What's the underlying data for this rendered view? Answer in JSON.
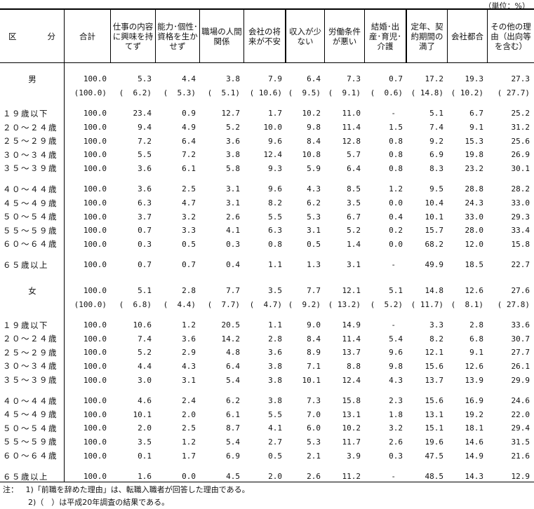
{
  "unit": "（単位：%）",
  "header": {
    "kubun_a": "区",
    "kubun_b": "分",
    "columns": [
      "合計",
      "仕事の内容に興味を持てず",
      "能力･個性･資格を生かせず",
      "職場の人間関係",
      "会社の将来が不安",
      "収入が少ない",
      "労働条件が悪い",
      "結婚･出産･育児･介護",
      "定年、契約期間の満了",
      "会社都合",
      "その他の理由（出向等を含む）"
    ]
  },
  "groups": [
    {
      "label": "男",
      "values": [
        "100.0",
        "5.3",
        "4.4",
        "3.8",
        "7.9",
        "6.4",
        "7.3",
        "0.7",
        "17.2",
        "19.3",
        "27.3"
      ],
      "prev": [
        "(100.0)",
        "(  6.2)",
        "(  5.3)",
        "(  5.1)",
        "( 10.6)",
        "(  9.5)",
        "(  9.1)",
        "(  0.6)",
        "( 14.8)",
        "( 10.2)",
        "( 27.7)"
      ],
      "blocks": [
        [
          {
            "label": "１９歳以下",
            "values": [
              "100.0",
              "23.4",
              "0.9",
              "12.7",
              "1.7",
              "10.2",
              "11.0",
              "-",
              "5.1",
              "6.7",
              "25.2"
            ]
          },
          {
            "label": "２０～２４歳",
            "values": [
              "100.0",
              "9.4",
              "4.9",
              "5.2",
              "10.0",
              "9.8",
              "11.4",
              "1.5",
              "7.4",
              "9.1",
              "31.2"
            ]
          },
          {
            "label": "２５～２９歳",
            "values": [
              "100.0",
              "7.2",
              "6.4",
              "3.6",
              "9.6",
              "8.4",
              "12.8",
              "0.8",
              "9.2",
              "15.3",
              "25.6"
            ]
          },
          {
            "label": "３０～３４歳",
            "values": [
              "100.0",
              "5.5",
              "7.2",
              "3.8",
              "12.4",
              "10.8",
              "5.7",
              "0.8",
              "6.9",
              "19.8",
              "26.9"
            ]
          },
          {
            "label": "３５～３９歳",
            "values": [
              "100.0",
              "3.6",
              "6.1",
              "5.8",
              "9.3",
              "5.9",
              "6.4",
              "0.8",
              "8.3",
              "23.2",
              "30.1"
            ]
          }
        ],
        [
          {
            "label": "４０～４４歳",
            "values": [
              "100.0",
              "3.6",
              "2.5",
              "3.1",
              "9.6",
              "4.3",
              "8.5",
              "1.2",
              "9.5",
              "28.8",
              "28.2"
            ]
          },
          {
            "label": "４５～４９歳",
            "values": [
              "100.0",
              "6.3",
              "4.7",
              "3.1",
              "8.2",
              "6.2",
              "3.5",
              "0.0",
              "10.4",
              "24.3",
              "33.0"
            ]
          },
          {
            "label": "５０～５４歳",
            "values": [
              "100.0",
              "3.7",
              "3.2",
              "2.6",
              "5.5",
              "5.3",
              "6.7",
              "0.4",
              "10.1",
              "33.0",
              "29.3"
            ]
          },
          {
            "label": "５５～５９歳",
            "values": [
              "100.0",
              "0.7",
              "3.3",
              "4.1",
              "6.3",
              "3.1",
              "5.2",
              "0.2",
              "15.7",
              "28.0",
              "33.4"
            ]
          },
          {
            "label": "６０～６４歳",
            "values": [
              "100.0",
              "0.3",
              "0.5",
              "0.3",
              "0.8",
              "0.5",
              "1.4",
              "0.0",
              "68.2",
              "12.0",
              "15.8"
            ]
          }
        ],
        [
          {
            "label": "６５歳以上",
            "values": [
              "100.0",
              "0.7",
              "0.7",
              "0.4",
              "1.1",
              "1.3",
              "3.1",
              "-",
              "49.9",
              "18.5",
              "22.7"
            ]
          }
        ]
      ]
    },
    {
      "label": "女",
      "values": [
        "100.0",
        "5.1",
        "2.8",
        "7.7",
        "3.5",
        "7.7",
        "12.1",
        "5.1",
        "14.8",
        "12.6",
        "27.6"
      ],
      "prev": [
        "(100.0)",
        "(  6.8)",
        "(  4.4)",
        "(  7.7)",
        "(  4.7)",
        "(  9.2)",
        "( 13.2)",
        "(  5.2)",
        "( 11.7)",
        "(  8.1)",
        "( 27.8)"
      ],
      "blocks": [
        [
          {
            "label": "１９歳以下",
            "values": [
              "100.0",
              "10.6",
              "1.2",
              "20.5",
              "1.1",
              "9.0",
              "14.9",
              "-",
              "3.3",
              "2.8",
              "33.6"
            ]
          },
          {
            "label": "２０～２４歳",
            "values": [
              "100.0",
              "7.4",
              "3.6",
              "14.2",
              "2.8",
              "8.4",
              "11.4",
              "5.4",
              "8.2",
              "6.8",
              "30.7"
            ]
          },
          {
            "label": "２５～２９歳",
            "values": [
              "100.0",
              "5.2",
              "2.9",
              "4.8",
              "3.6",
              "8.9",
              "13.7",
              "9.6",
              "12.1",
              "9.1",
              "27.7"
            ]
          },
          {
            "label": "３０～３４歳",
            "values": [
              "100.0",
              "4.4",
              "4.3",
              "6.4",
              "3.8",
              "7.1",
              "8.8",
              "9.8",
              "15.6",
              "12.6",
              "26.1"
            ]
          },
          {
            "label": "３５～３９歳",
            "values": [
              "100.0",
              "3.0",
              "3.1",
              "5.4",
              "3.8",
              "10.1",
              "12.4",
              "4.3",
              "13.7",
              "13.9",
              "29.9"
            ]
          }
        ],
        [
          {
            "label": "４０～４４歳",
            "values": [
              "100.0",
              "4.6",
              "2.4",
              "6.2",
              "3.8",
              "7.3",
              "15.8",
              "2.3",
              "15.6",
              "16.9",
              "24.6"
            ]
          },
          {
            "label": "４５～４９歳",
            "values": [
              "100.0",
              "10.1",
              "2.0",
              "6.1",
              "5.5",
              "7.0",
              "13.1",
              "1.8",
              "13.1",
              "19.2",
              "22.0"
            ]
          },
          {
            "label": "５０～５４歳",
            "values": [
              "100.0",
              "2.0",
              "2.5",
              "8.7",
              "4.1",
              "6.0",
              "10.2",
              "3.2",
              "15.1",
              "18.1",
              "29.4"
            ]
          },
          {
            "label": "５５～５９歳",
            "values": [
              "100.0",
              "3.5",
              "1.2",
              "5.4",
              "2.7",
              "5.3",
              "11.7",
              "2.6",
              "19.6",
              "14.6",
              "31.5"
            ]
          },
          {
            "label": "６０～６４歳",
            "values": [
              "100.0",
              "0.1",
              "1.7",
              "6.9",
              "0.5",
              "2.1",
              "3.9",
              "0.3",
              "47.5",
              "14.9",
              "21.6"
            ]
          }
        ],
        [
          {
            "label": "６５歳以上",
            "values": [
              "100.0",
              "1.6",
              "0.0",
              "4.5",
              "2.0",
              "2.6",
              "11.2",
              "-",
              "48.5",
              "14.3",
              "12.9"
            ]
          }
        ]
      ]
    }
  ],
  "notes": {
    "prefix": "注：",
    "n1": "1)「前職を辞めた理由」は、転職入職者が回答した理由である。",
    "n2": "2)（　）は平成20年調査の結果である。"
  }
}
